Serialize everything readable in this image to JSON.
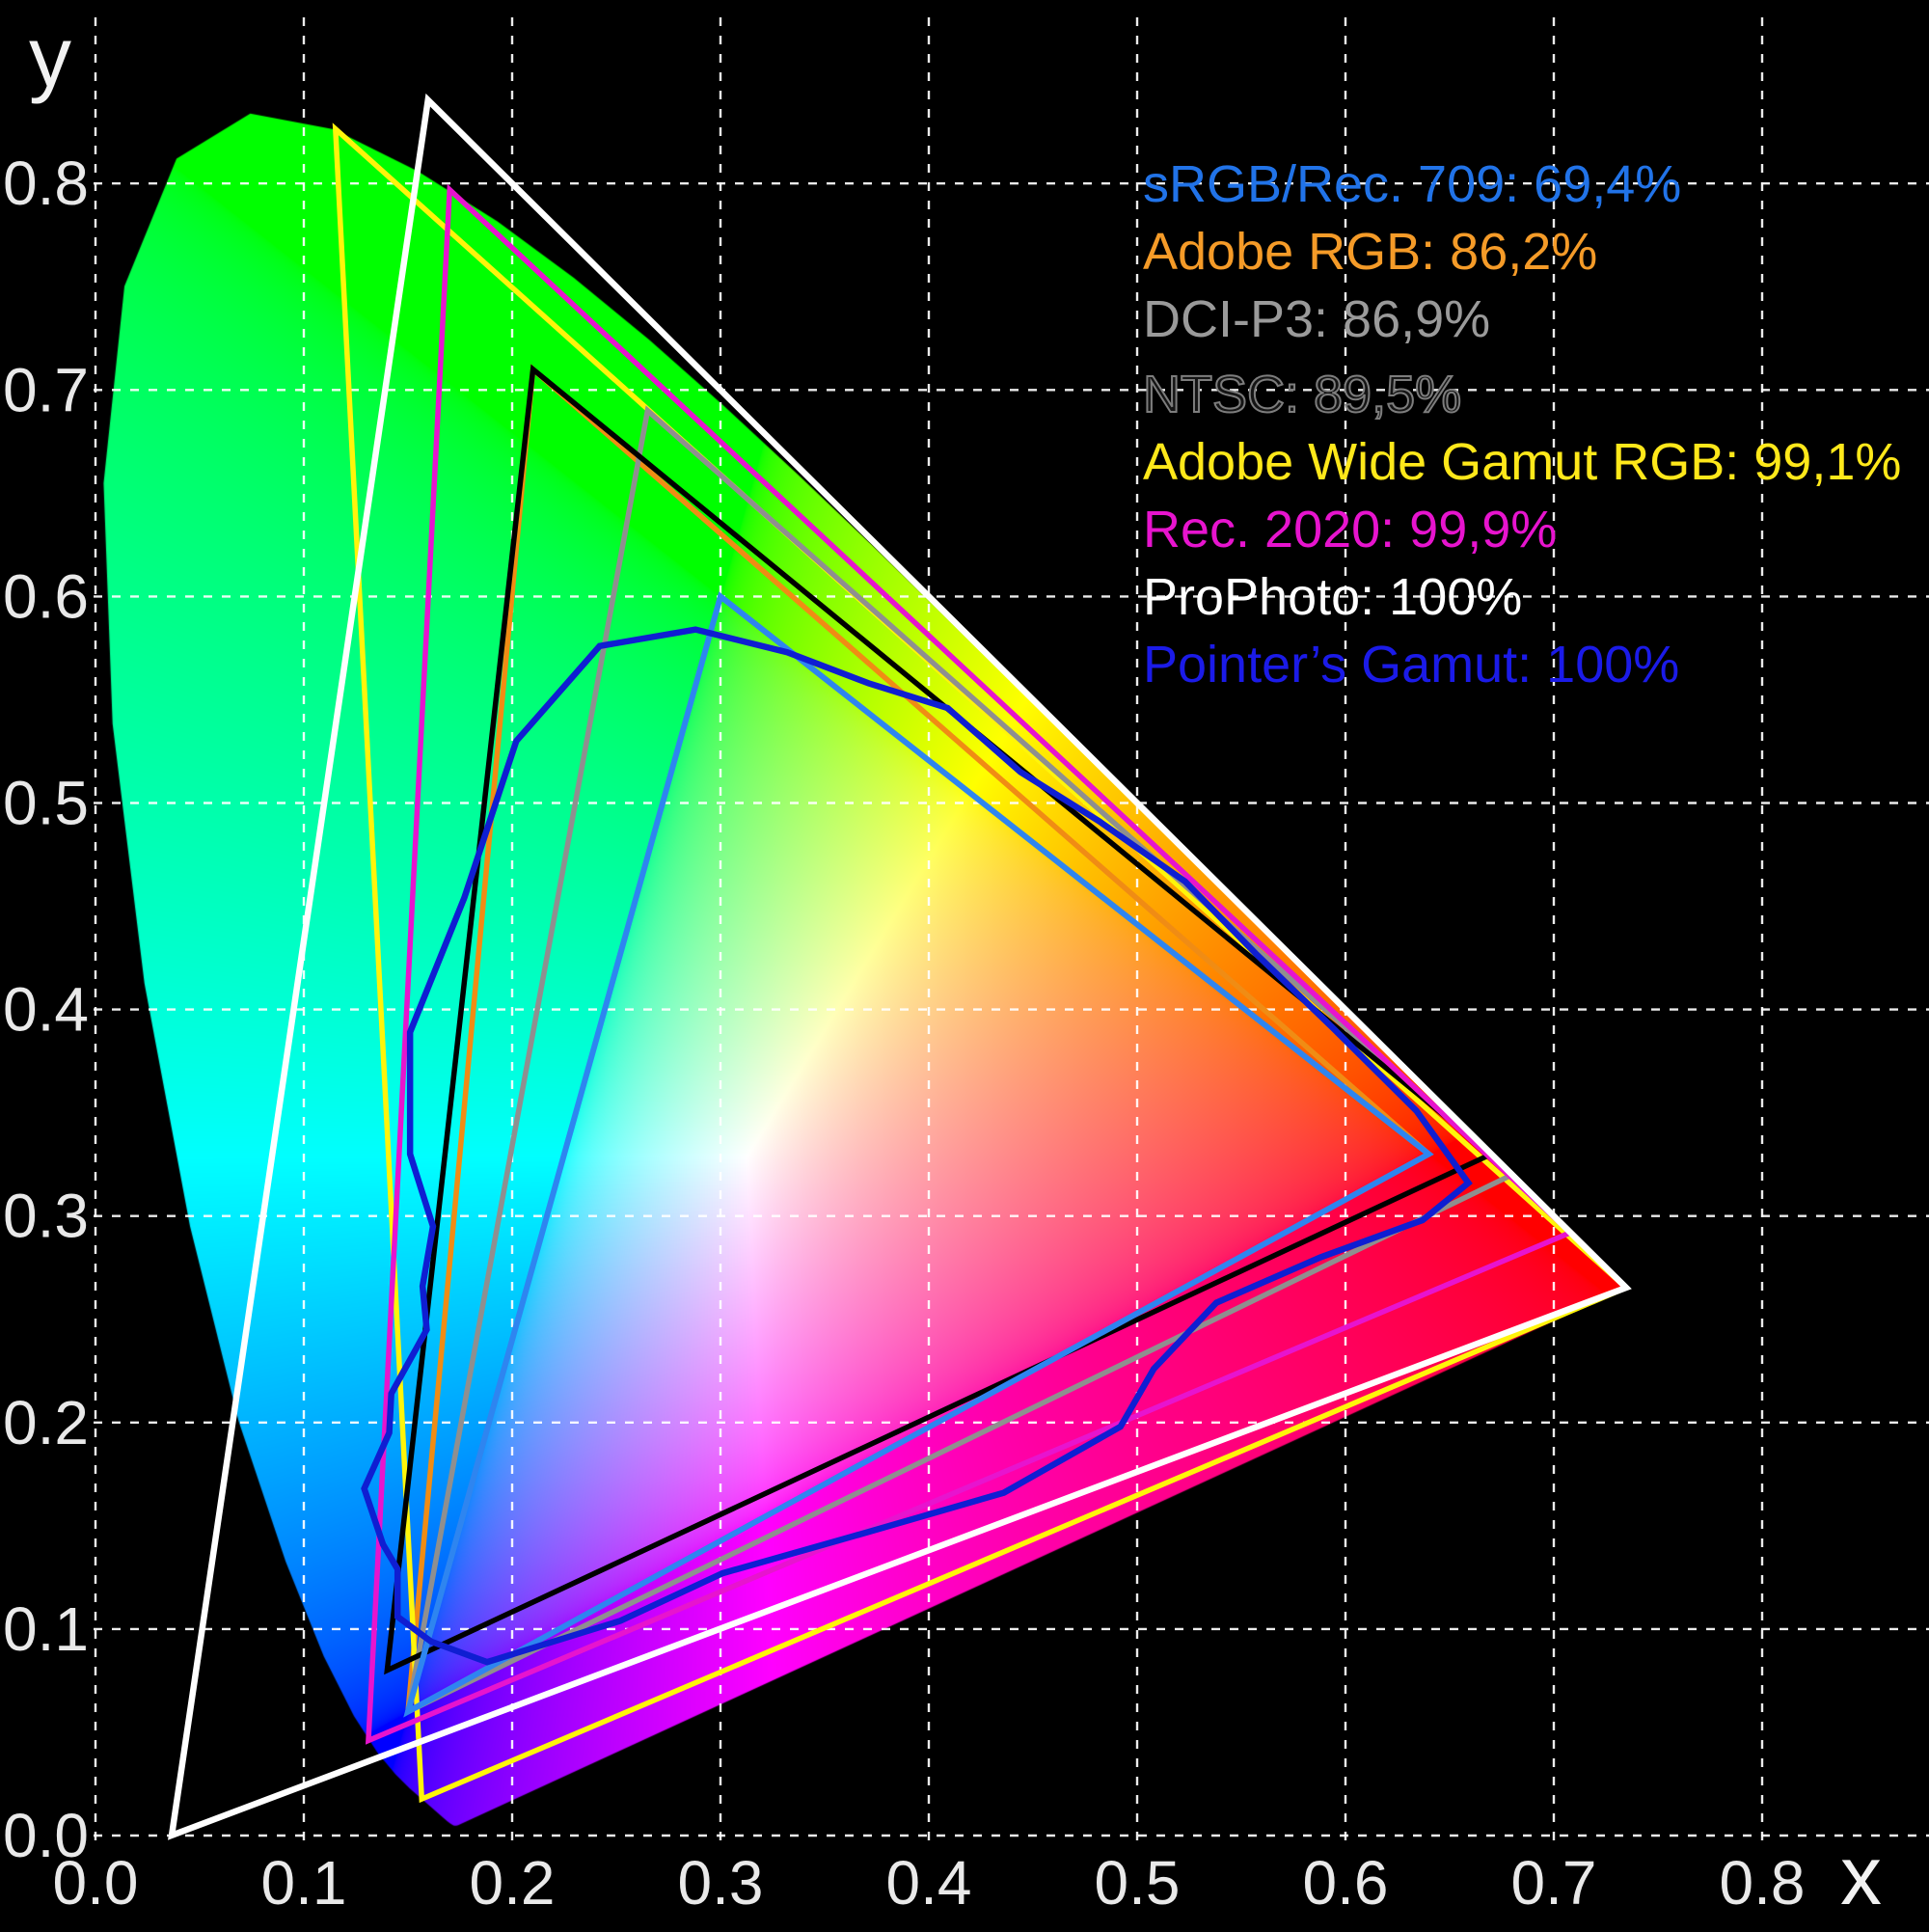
{
  "chart_data": {
    "type": "area",
    "subtype": "cie-1931-chromaticity-diagram",
    "title": "",
    "xlabel": "x",
    "ylabel": "y",
    "xlim": [
      -0.046,
      0.88
    ],
    "ylim": [
      -0.047,
      0.889
    ],
    "x_ticks": [
      "0.0",
      "0.1",
      "0.2",
      "0.3",
      "0.4",
      "0.5",
      "0.6",
      "0.7",
      "0.8"
    ],
    "y_ticks": [
      "0.0",
      "0.1",
      "0.2",
      "0.3",
      "0.4",
      "0.5",
      "0.6",
      "0.7",
      "0.8"
    ],
    "grid": "dashed",
    "background_color": "#000000",
    "grid_color": "#ffffff",
    "tick_label_color": "#e9e9e9",
    "legend_position": "top-right",
    "gamuts": [
      {
        "name": "sRGB/Rec. 709",
        "coverage": "69,4%",
        "legend_color": "#2173e8",
        "line_color": "#2e85f0",
        "line_width": 6,
        "z": 5,
        "primaries": [
          [
            0.64,
            0.33
          ],
          [
            0.3,
            0.6
          ],
          [
            0.15,
            0.06
          ]
        ]
      },
      {
        "name": "Adobe RGB",
        "coverage": "86,2%",
        "legend_color": "#f59b28",
        "line_color": "#f08c14",
        "line_width": 5.5,
        "z": 1,
        "primaries": [
          [
            0.64,
            0.33
          ],
          [
            0.21,
            0.71
          ],
          [
            0.15,
            0.06
          ]
        ]
      },
      {
        "name": "DCI-P3",
        "coverage": "86,9%",
        "legend_color": "#9a9a9a",
        "line_color": "#8f8f8f",
        "line_width": 5.5,
        "z": 3,
        "primaries": [
          [
            0.68,
            0.32
          ],
          [
            0.265,
            0.69
          ],
          [
            0.15,
            0.06
          ]
        ]
      },
      {
        "name": "NTSC",
        "coverage": "89,5%",
        "legend_color": "#141414",
        "legend_style": "outline",
        "line_color": "#000000",
        "line_width": 5.5,
        "z": 4,
        "primaries": [
          [
            0.67,
            0.33
          ],
          [
            0.21,
            0.71
          ],
          [
            0.14,
            0.08
          ]
        ]
      },
      {
        "name": "Adobe Wide Gamut RGB",
        "coverage": "99,1%",
        "legend_color": "#ffe81a",
        "line_color": "#fff50a",
        "line_width": 5.5,
        "z": 2,
        "primaries": [
          [
            0.7347,
            0.2653
          ],
          [
            0.1152,
            0.8264
          ],
          [
            0.1566,
            0.0177
          ]
        ]
      },
      {
        "name": "Rec. 2020",
        "coverage": "99,9%",
        "legend_color": "#e714ce",
        "line_color": "#e714ce",
        "line_width": 5.5,
        "z": 6,
        "primaries": [
          [
            0.708,
            0.292
          ],
          [
            0.17,
            0.797
          ],
          [
            0.131,
            0.046
          ]
        ]
      },
      {
        "name": "ProPhoto",
        "coverage": "100%",
        "legend_color": "#ffffff",
        "line_color": "#ffffff",
        "line_width": 6.5,
        "z": 7,
        "primaries": [
          [
            0.7347,
            0.2653
          ],
          [
            0.1596,
            0.8404
          ],
          [
            0.0366,
            0.0001
          ]
        ]
      },
      {
        "name": "Pointer’s Gamut",
        "coverage": "100%",
        "legend_color": "#1b1be8",
        "line_color": "#0f1ed2",
        "line_width": 6.5,
        "z": 8,
        "polygon": [
          [
            0.508,
            0.226
          ],
          [
            0.538,
            0.258
          ],
          [
            0.588,
            0.28
          ],
          [
            0.637,
            0.298
          ],
          [
            0.659,
            0.316
          ],
          [
            0.634,
            0.351
          ],
          [
            0.594,
            0.391
          ],
          [
            0.557,
            0.427
          ],
          [
            0.523,
            0.462
          ],
          [
            0.482,
            0.491
          ],
          [
            0.444,
            0.515
          ],
          [
            0.409,
            0.546
          ],
          [
            0.371,
            0.558
          ],
          [
            0.332,
            0.573
          ],
          [
            0.288,
            0.584
          ],
          [
            0.242,
            0.576
          ],
          [
            0.202,
            0.53
          ],
          [
            0.177,
            0.454
          ],
          [
            0.151,
            0.389
          ],
          [
            0.151,
            0.33
          ],
          [
            0.162,
            0.295
          ],
          [
            0.157,
            0.266
          ],
          [
            0.159,
            0.245
          ],
          [
            0.142,
            0.214
          ],
          [
            0.141,
            0.195
          ],
          [
            0.129,
            0.168
          ],
          [
            0.138,
            0.141
          ],
          [
            0.145,
            0.129
          ],
          [
            0.145,
            0.106
          ],
          [
            0.161,
            0.094
          ],
          [
            0.188,
            0.084
          ],
          [
            0.252,
            0.104
          ],
          [
            0.301,
            0.127
          ],
          [
            0.364,
            0.145
          ],
          [
            0.436,
            0.166
          ],
          [
            0.492,
            0.198
          ]
        ]
      }
    ],
    "spectral_locus": [
      [
        380,
        0.1741,
        0.005
      ],
      [
        385,
        0.174,
        0.005
      ],
      [
        390,
        0.1738,
        0.0049
      ],
      [
        395,
        0.1736,
        0.0049
      ],
      [
        400,
        0.1733,
        0.0048
      ],
      [
        405,
        0.173,
        0.0048
      ],
      [
        410,
        0.1726,
        0.0048
      ],
      [
        415,
        0.1721,
        0.0048
      ],
      [
        420,
        0.1714,
        0.0051
      ],
      [
        425,
        0.1703,
        0.0058
      ],
      [
        430,
        0.1689,
        0.0069
      ],
      [
        435,
        0.1669,
        0.0086
      ],
      [
        440,
        0.1644,
        0.0109
      ],
      [
        445,
        0.1611,
        0.0138
      ],
      [
        450,
        0.1566,
        0.0177
      ],
      [
        455,
        0.151,
        0.0227
      ],
      [
        460,
        0.144,
        0.0297
      ],
      [
        465,
        0.1355,
        0.0399
      ],
      [
        470,
        0.1241,
        0.0578
      ],
      [
        475,
        0.1096,
        0.0868
      ],
      [
        480,
        0.0913,
        0.1327
      ],
      [
        485,
        0.0687,
        0.2007
      ],
      [
        490,
        0.0454,
        0.295
      ],
      [
        495,
        0.0235,
        0.4127
      ],
      [
        500,
        0.0082,
        0.5384
      ],
      [
        505,
        0.0039,
        0.6548
      ],
      [
        510,
        0.0139,
        0.7502
      ],
      [
        515,
        0.0389,
        0.812
      ],
      [
        520,
        0.0743,
        0.8338
      ],
      [
        525,
        0.1142,
        0.8262
      ],
      [
        530,
        0.1547,
        0.8059
      ],
      [
        535,
        0.1929,
        0.7816
      ],
      [
        540,
        0.2296,
        0.7543
      ],
      [
        545,
        0.2658,
        0.7243
      ],
      [
        550,
        0.3016,
        0.6923
      ],
      [
        555,
        0.3373,
        0.6589
      ],
      [
        560,
        0.3731,
        0.6245
      ],
      [
        565,
        0.4087,
        0.5896
      ],
      [
        570,
        0.4441,
        0.5547
      ],
      [
        575,
        0.4788,
        0.5202
      ],
      [
        580,
        0.5125,
        0.4866
      ],
      [
        585,
        0.5448,
        0.4544
      ],
      [
        590,
        0.5752,
        0.4242
      ],
      [
        595,
        0.6029,
        0.3965
      ],
      [
        600,
        0.627,
        0.3725
      ],
      [
        605,
        0.6482,
        0.3514
      ],
      [
        610,
        0.6658,
        0.334
      ],
      [
        615,
        0.6801,
        0.3197
      ],
      [
        620,
        0.6915,
        0.3083
      ],
      [
        625,
        0.7006,
        0.2993
      ],
      [
        630,
        0.7079,
        0.292
      ],
      [
        635,
        0.714,
        0.2859
      ],
      [
        640,
        0.719,
        0.2809
      ],
      [
        645,
        0.723,
        0.277
      ],
      [
        650,
        0.726,
        0.274
      ],
      [
        655,
        0.7283,
        0.2717
      ],
      [
        660,
        0.73,
        0.27
      ],
      [
        665,
        0.7311,
        0.2689
      ],
      [
        670,
        0.732,
        0.268
      ],
      [
        675,
        0.7327,
        0.2673
      ],
      [
        680,
        0.7334,
        0.2666
      ],
      [
        685,
        0.734,
        0.266
      ],
      [
        690,
        0.7344,
        0.2656
      ],
      [
        695,
        0.7346,
        0.2654
      ],
      [
        700,
        0.7347,
        0.2653
      ]
    ]
  }
}
